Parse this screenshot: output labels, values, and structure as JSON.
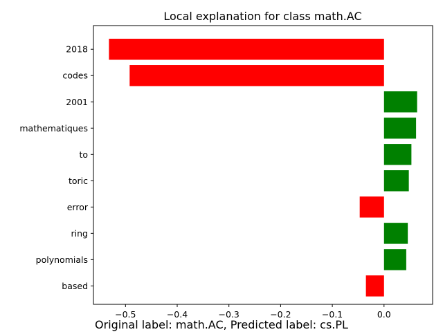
{
  "chart_data": {
    "type": "bar",
    "orientation": "horizontal",
    "title": "Local explanation for class math.AC",
    "caption": "Original label: math.AC, Predicted label: cs.PL",
    "categories": [
      "2018",
      "codes",
      "2001",
      "mathematiques",
      "to",
      "toric",
      "error",
      "ring",
      "polynomials",
      "based"
    ],
    "values": [
      -0.532,
      -0.492,
      0.064,
      0.062,
      0.053,
      0.048,
      -0.047,
      0.046,
      0.043,
      -0.035
    ],
    "positive_color": "#008000",
    "negative_color": "#ff0000",
    "xlim": [
      -0.562,
      0.094
    ],
    "xticks": [
      -0.5,
      -0.4,
      -0.3,
      -0.2,
      -0.1,
      0.0
    ],
    "xtick_labels": [
      "−0.5",
      "−0.4",
      "−0.3",
      "−0.2",
      "−0.1",
      "0.0"
    ],
    "xlabel": "",
    "ylabel": "",
    "grid": false,
    "legend": "none"
  }
}
